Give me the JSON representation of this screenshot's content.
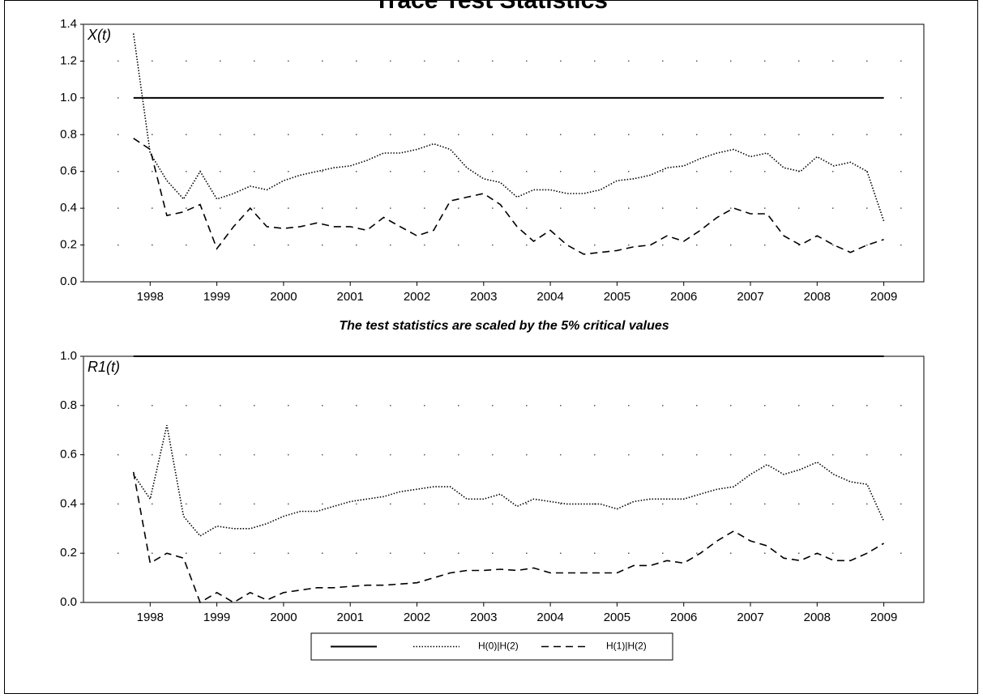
{
  "chart_data": [
    {
      "type": "line",
      "title": "Trace Test Statistics",
      "label": "X(t)",
      "note": "The test statistics are scaled by the 5% critical values",
      "x": [
        1997.75,
        1998,
        1998.25,
        1998.5,
        1998.75,
        1999,
        1999.25,
        1999.5,
        1999.75,
        2000,
        2000.25,
        2000.5,
        2000.75,
        2001,
        2001.25,
        2001.5,
        2001.75,
        2002,
        2002.25,
        2002.5,
        2002.75,
        2003,
        2003.25,
        2003.5,
        2003.75,
        2004,
        2004.25,
        2004.5,
        2004.75,
        2005,
        2005.25,
        2005.5,
        2005.75,
        2006,
        2006.25,
        2006.5,
        2006.75,
        2007,
        2007.25,
        2007.5,
        2007.75,
        2008,
        2008.25,
        2008.5,
        2008.75,
        2009
      ],
      "hline": 1,
      "series": [
        {
          "name": "H(0)|H(2)",
          "color": "#000000",
          "style": "dotted",
          "values": [
            1.35,
            0.7,
            0.55,
            0.45,
            0.6,
            0.45,
            0.48,
            0.52,
            0.5,
            0.55,
            0.58,
            0.6,
            0.62,
            0.63,
            0.66,
            0.7,
            0.7,
            0.72,
            0.75,
            0.72,
            0.62,
            0.56,
            0.54,
            0.46,
            0.5,
            0.5,
            0.48,
            0.48,
            0.5,
            0.55,
            0.56,
            0.58,
            0.62,
            0.63,
            0.67,
            0.7,
            0.72,
            0.68,
            0.7,
            0.62,
            0.6,
            0.68,
            0.63,
            0.65,
            0.6,
            0.33
          ]
        },
        {
          "name": "H(1)|H(2)",
          "color": "#000000",
          "style": "dashed",
          "values": [
            0.78,
            0.72,
            0.36,
            0.38,
            0.42,
            0.18,
            0.3,
            0.4,
            0.3,
            0.29,
            0.3,
            0.32,
            0.3,
            0.3,
            0.28,
            0.35,
            0.3,
            0.25,
            0.28,
            0.44,
            0.46,
            0.48,
            0.42,
            0.3,
            0.22,
            0.28,
            0.2,
            0.15,
            0.16,
            0.17,
            0.19,
            0.2,
            0.25,
            0.22,
            0.28,
            0.35,
            0.4,
            0.37,
            0.37,
            0.25,
            0.2,
            0.25,
            0.2,
            0.16,
            0.2,
            0.23
          ]
        }
      ],
      "xlim": [
        1997,
        2009.6
      ],
      "xticks": [
        1998,
        1999,
        2000,
        2001,
        2002,
        2003,
        2004,
        2005,
        2006,
        2007,
        2008,
        2009
      ],
      "ylim": [
        0,
        1.4
      ],
      "yticks": [
        {
          "value": 0,
          "label": "0.0"
        },
        0.2,
        0.4,
        0.6,
        0.8,
        {
          "value": 1,
          "label": "1.0"
        },
        1.2,
        1.4
      ],
      "grid": true
    },
    {
      "type": "line",
      "label": "R1(t)",
      "x": [
        1997.75,
        1998,
        1998.25,
        1998.5,
        1998.75,
        1999,
        1999.25,
        1999.5,
        1999.75,
        2000,
        2000.25,
        2000.5,
        2000.75,
        2001,
        2001.25,
        2001.5,
        2001.75,
        2002,
        2002.25,
        2002.5,
        2002.75,
        2003,
        2003.25,
        2003.5,
        2003.75,
        2004,
        2004.25,
        2004.5,
        2004.75,
        2005,
        2005.25,
        2005.5,
        2005.75,
        2006,
        2006.25,
        2006.5,
        2006.75,
        2007,
        2007.25,
        2007.5,
        2007.75,
        2008,
        2008.25,
        2008.5,
        2008.75,
        2009
      ],
      "hline": 1,
      "series": [
        {
          "name": "H(0)|H(2)",
          "color": "#000000",
          "style": "dotted",
          "values": [
            0.52,
            0.42,
            0.72,
            0.35,
            0.27,
            0.31,
            0.3,
            0.3,
            0.32,
            0.35,
            0.37,
            0.37,
            0.39,
            0.41,
            0.42,
            0.43,
            0.45,
            0.46,
            0.47,
            0.47,
            0.42,
            0.42,
            0.44,
            0.39,
            0.42,
            0.41,
            0.4,
            0.4,
            0.4,
            0.38,
            0.41,
            0.42,
            0.42,
            0.42,
            0.44,
            0.46,
            0.47,
            0.52,
            0.56,
            0.52,
            0.54,
            0.57,
            0.52,
            0.49,
            0.48,
            0.33
          ]
        },
        {
          "name": "H(1)|H(2)",
          "color": "#000000",
          "style": "dashed",
          "values": [
            0.53,
            0.16,
            0.2,
            0.18,
            0.0,
            0.04,
            0.0,
            0.04,
            0.01,
            0.04,
            0.05,
            0.06,
            0.06,
            0.065,
            0.07,
            0.07,
            0.075,
            0.08,
            0.1,
            0.12,
            0.13,
            0.13,
            0.135,
            0.13,
            0.14,
            0.12,
            0.12,
            0.12,
            0.12,
            0.12,
            0.15,
            0.15,
            0.17,
            0.16,
            0.2,
            0.25,
            0.29,
            0.25,
            0.23,
            0.18,
            0.17,
            0.2,
            0.17,
            0.17,
            0.2,
            0.24
          ]
        }
      ],
      "xlim": [
        1997,
        2009.6
      ],
      "xticks": [
        1998,
        1999,
        2000,
        2001,
        2002,
        2003,
        2004,
        2005,
        2006,
        2007,
        2008,
        2009
      ],
      "ylim": [
        0,
        1
      ],
      "yticks": [
        {
          "value": 0,
          "label": "0.0"
        },
        0.2,
        0.4,
        0.6,
        0.8,
        {
          "value": 1,
          "label": "1.0"
        }
      ],
      "grid": true,
      "legend": true
    }
  ]
}
